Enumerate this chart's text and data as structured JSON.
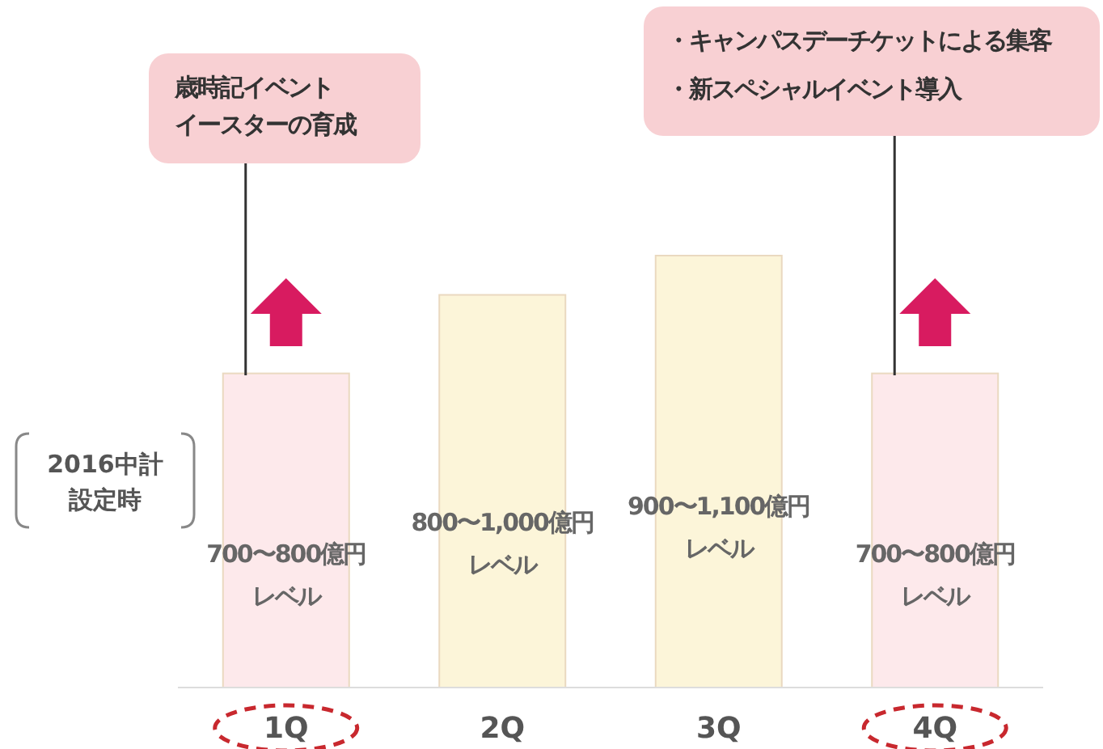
{
  "chart_data": {
    "type": "bar",
    "categories": [
      "1Q",
      "2Q",
      "3Q",
      "4Q"
    ],
    "values": [
      800,
      1000,
      1100,
      800
    ],
    "colors": [
      "#fde9eb",
      "#fcf5d9",
      "#fcf5d9",
      "#fde9eb"
    ],
    "value_labels": [
      "700〜800億円",
      "800〜1,000億円",
      "900〜1,100億円",
      "700〜800億円"
    ],
    "annotations": [
      "2016中計",
      "設定時",
      "歳時記イベント",
      "イースターの育成",
      "・キャンパスデーチケットによる集客",
      "・新スペシャルイベント導入",
      "レベル",
      "レベル",
      "レベル",
      "レベル"
    ]
  }
}
